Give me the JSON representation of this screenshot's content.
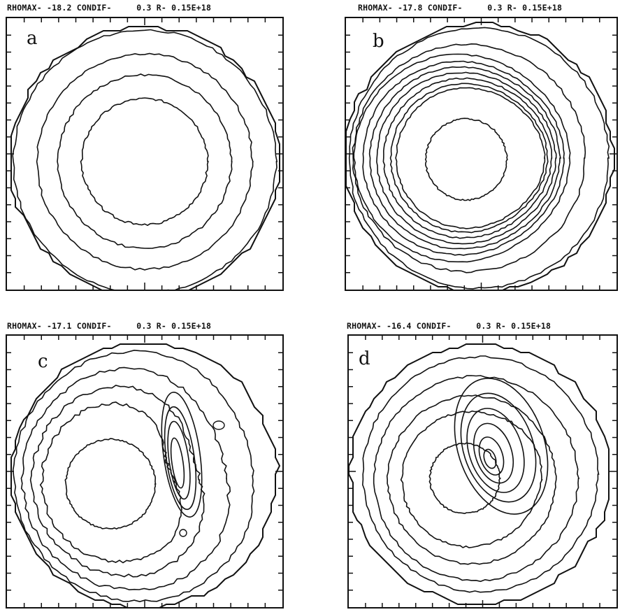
{
  "panels": [
    {
      "label": "a",
      "rhomax": "-18.2",
      "header_line": "RHOMAX- -18.2 CONDIF-     0.3 R- 0.15E+18"
    },
    {
      "label": "b",
      "rhomax": "-17.8",
      "header_line": "RHOMAX- -17.8 CONDIF-     0.3 R- 0.15E+18"
    },
    {
      "label": "c",
      "rhomax": "-17.1",
      "header_line": "RHOMAX- -17.1 CONDIF-     0.3 R- 0.15E+18"
    },
    {
      "label": "d",
      "rhomax": "-16.4",
      "header_line": "RHOMAX- -16.4 CONDIF-     0.3 R- 0.15E+18"
    }
  ],
  "condif": "0.3",
  "r": "0.15E+18",
  "colors": {
    "ink": "#111111",
    "paper": "#ffffff"
  }
}
